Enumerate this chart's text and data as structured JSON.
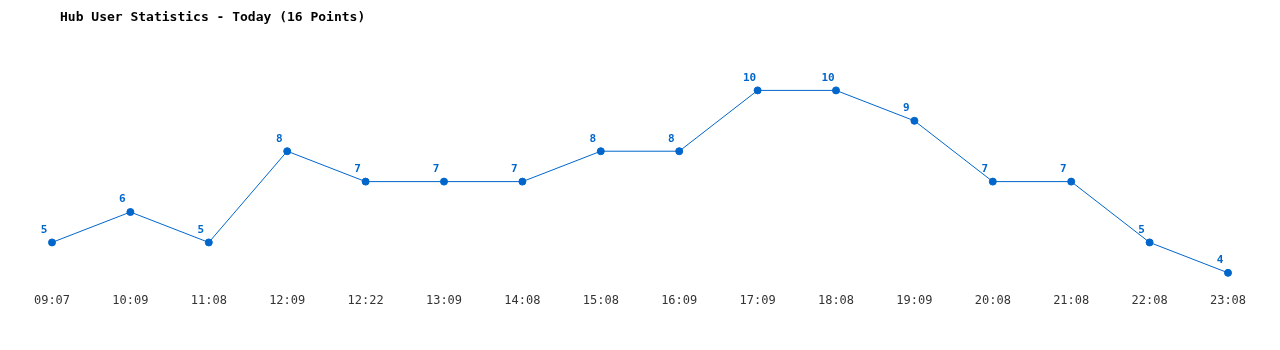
{
  "chart_data": {
    "type": "line",
    "title": "Hub User Statistics - Today (16 Points)",
    "categories": [
      "09:07",
      "10:09",
      "11:08",
      "12:09",
      "12:22",
      "13:09",
      "14:08",
      "15:08",
      "16:09",
      "17:09",
      "18:08",
      "19:09",
      "20:08",
      "21:08",
      "22:08",
      "23:08"
    ],
    "series": [
      {
        "color": "#0066cc",
        "values": [
          5,
          6,
          5,
          8,
          7,
          7,
          7,
          8,
          8,
          10,
          10,
          9,
          7,
          7,
          5,
          4
        ]
      }
    ],
    "data_labels": true,
    "marker": "circle",
    "line_style": "solid",
    "grid": false,
    "legend": false,
    "tick_labels": "x"
  }
}
